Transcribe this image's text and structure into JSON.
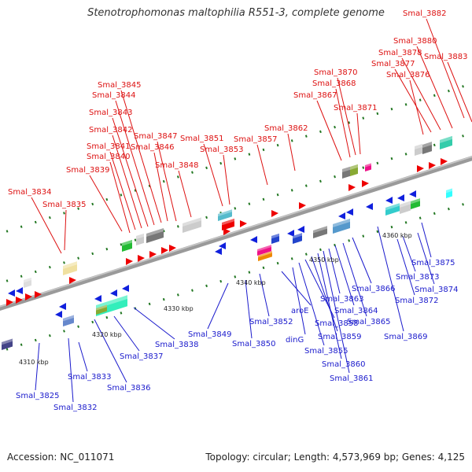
{
  "title": "Stenotrophomonas maltophilia R551-3, complete genome",
  "accession": "Accession: NC_011071",
  "summary": "Topology: circular; Length: 4,573,969 bp; Genes: 4,125",
  "colors": {
    "top_label": "#dd1111",
    "bottom_label": "#1a1acc",
    "backbone": "#999999",
    "tick": "#227722",
    "forward_gene": "#ee0000",
    "reverse_gene": "#1020dd"
  },
  "scale_labels": [
    {
      "text": "4310 kbp",
      "kbp": 4310
    },
    {
      "text": "4320 kbp",
      "kbp": 4320
    },
    {
      "text": "4330 kbp",
      "kbp": 4330
    },
    {
      "text": "4340 kbp",
      "kbp": 4340
    },
    {
      "text": "4350 kbp",
      "kbp": 4350
    },
    {
      "text": "4360 kbp",
      "kbp": 4360
    }
  ],
  "top_labels": [
    "Smal_3834",
    "Smal_3835",
    "Smal_3839",
    "Smal_3840",
    "Smal_3841",
    "Smal_3842",
    "Smal_3843",
    "Smal_3844",
    "Smal_3845",
    "Smal_3846",
    "Smal_3847",
    "Smal_3848",
    "Smal_3851",
    "Smal_3853",
    "Smal_3857",
    "Smal_3862",
    "Smal_3867",
    "Smal_3868",
    "Smal_3870",
    "Smal_3871",
    "Smal_3876",
    "Smal_3877",
    "Smal_3878",
    "Smal_3880",
    "Smal_3882",
    "Smal_3883"
  ],
  "bottom_labels": [
    "Smal_3825",
    "Smal_3832",
    "Smal_3833",
    "Smal_3836",
    "Smal_3837",
    "Smal_3838",
    "Smal_3849",
    "Smal_3850",
    "Smal_3852",
    "aroE",
    "dinG",
    "Smal_3855",
    "Smal_3858",
    "Smal_3859",
    "Smal_3860",
    "Smal_3861",
    "Smal_3863",
    "Smal_3864",
    "Smal_3865",
    "Smal_3866",
    "Smal_3869",
    "Smal_3872",
    "Smal_3873",
    "Smal_3874",
    "Smal_3875"
  ]
}
